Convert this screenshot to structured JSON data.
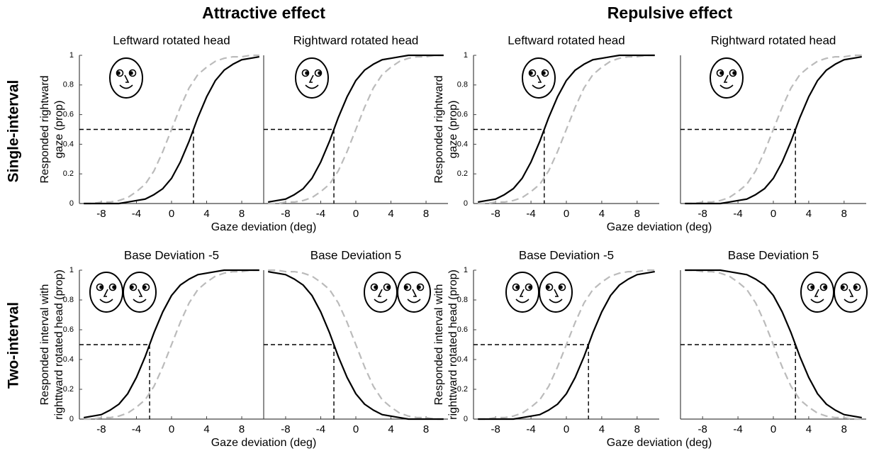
{
  "figure": {
    "columns": [
      "Attractive effect",
      "Repulsive effect"
    ],
    "rows": [
      "Single-interval",
      "Two-interval"
    ]
  },
  "chart_data": [
    {
      "type": "line",
      "title": "Leftward rotated head",
      "ylabel": [
        "Responded rightward",
        "gaze (prop)"
      ],
      "xlabel": "Gaze deviation (deg)",
      "x": [
        -10,
        -9,
        -8,
        -7,
        -6,
        -5,
        -4,
        -3,
        -2,
        -1,
        0,
        1,
        2,
        3,
        4,
        5,
        6,
        7,
        8,
        9,
        10
      ],
      "xlim": [
        -10.5,
        10.5
      ],
      "ylim": [
        0,
        1
      ],
      "xticks": [
        -8,
        -4,
        0,
        4,
        8
      ],
      "yticks": [
        0,
        0.2,
        0.4,
        0.6,
        0.8,
        1
      ],
      "series": [
        {
          "color": "#000000",
          "style": "solid",
          "values": [
            0,
            0,
            0,
            0,
            0,
            0.01,
            0.02,
            0.03,
            0.06,
            0.1,
            0.17,
            0.28,
            0.42,
            0.58,
            0.72,
            0.83,
            0.9,
            0.94,
            0.97,
            0.98,
            0.99
          ]
        },
        {
          "color": "#bbbbbb",
          "style": "dashed",
          "values": [
            0,
            0,
            0.01,
            0.01,
            0.02,
            0.04,
            0.08,
            0.13,
            0.22,
            0.35,
            0.5,
            0.65,
            0.78,
            0.87,
            0.92,
            0.96,
            0.98,
            0.99,
            0.99,
            1,
            1
          ]
        }
      ],
      "reference": {
        "x": 2.5,
        "y": 0.5
      }
    },
    {
      "type": "line",
      "title": "Rightward rotated head",
      "x": [
        -10,
        -9,
        -8,
        -7,
        -6,
        -5,
        -4,
        -3,
        -2,
        -1,
        0,
        1,
        2,
        3,
        4,
        5,
        6,
        7,
        8,
        9,
        10
      ],
      "xlim": [
        -10.5,
        10.5
      ],
      "ylim": [
        0,
        1
      ],
      "xticks": [
        -8,
        -4,
        0,
        4,
        8
      ],
      "series": [
        {
          "color": "#000000",
          "style": "solid",
          "values": [
            0.01,
            0.02,
            0.03,
            0.06,
            0.1,
            0.17,
            0.28,
            0.42,
            0.58,
            0.72,
            0.83,
            0.9,
            0.94,
            0.97,
            0.98,
            0.99,
            1,
            1,
            1,
            1,
            1
          ]
        },
        {
          "color": "#bbbbbb",
          "style": "dashed",
          "values": [
            0,
            0,
            0.01,
            0.01,
            0.02,
            0.04,
            0.08,
            0.13,
            0.22,
            0.35,
            0.5,
            0.65,
            0.78,
            0.87,
            0.92,
            0.96,
            0.98,
            0.99,
            0.99,
            1,
            1
          ]
        }
      ],
      "reference": {
        "x": -2.5,
        "y": 0.5
      }
    },
    {
      "type": "line",
      "title": "Leftward rotated head",
      "ylabel": [
        "Responded rightward",
        "gaze (prop)"
      ],
      "xlabel": "Gaze deviation (deg)",
      "x": [
        -10,
        -9,
        -8,
        -7,
        -6,
        -5,
        -4,
        -3,
        -2,
        -1,
        0,
        1,
        2,
        3,
        4,
        5,
        6,
        7,
        8,
        9,
        10
      ],
      "xlim": [
        -10.5,
        10.5
      ],
      "ylim": [
        0,
        1
      ],
      "xticks": [
        -8,
        -4,
        0,
        4,
        8
      ],
      "yticks": [
        0,
        0.2,
        0.4,
        0.6,
        0.8,
        1
      ],
      "series": [
        {
          "color": "#000000",
          "style": "solid",
          "values": [
            0.01,
            0.02,
            0.03,
            0.06,
            0.1,
            0.17,
            0.28,
            0.42,
            0.58,
            0.72,
            0.83,
            0.9,
            0.94,
            0.97,
            0.98,
            0.99,
            1,
            1,
            1,
            1,
            1
          ]
        },
        {
          "color": "#bbbbbb",
          "style": "dashed",
          "values": [
            0,
            0,
            0.01,
            0.01,
            0.02,
            0.04,
            0.08,
            0.13,
            0.22,
            0.35,
            0.5,
            0.65,
            0.78,
            0.87,
            0.92,
            0.96,
            0.98,
            0.99,
            0.99,
            1,
            1
          ]
        }
      ],
      "reference": {
        "x": -2.5,
        "y": 0.5
      }
    },
    {
      "type": "line",
      "title": "Rightward rotated head",
      "x": [
        -10,
        -9,
        -8,
        -7,
        -6,
        -5,
        -4,
        -3,
        -2,
        -1,
        0,
        1,
        2,
        3,
        4,
        5,
        6,
        7,
        8,
        9,
        10
      ],
      "xlim": [
        -10.5,
        10.5
      ],
      "ylim": [
        0,
        1
      ],
      "xticks": [
        -8,
        -4,
        0,
        4,
        8
      ],
      "series": [
        {
          "color": "#000000",
          "style": "solid",
          "values": [
            0,
            0,
            0,
            0,
            0,
            0.01,
            0.02,
            0.03,
            0.06,
            0.1,
            0.17,
            0.28,
            0.42,
            0.58,
            0.72,
            0.83,
            0.9,
            0.94,
            0.97,
            0.98,
            0.99
          ]
        },
        {
          "color": "#bbbbbb",
          "style": "dashed",
          "values": [
            0,
            0,
            0.01,
            0.01,
            0.02,
            0.04,
            0.08,
            0.13,
            0.22,
            0.35,
            0.5,
            0.65,
            0.78,
            0.87,
            0.92,
            0.96,
            0.98,
            0.99,
            0.99,
            1,
            1
          ]
        }
      ],
      "reference": {
        "x": 2.5,
        "y": 0.5
      }
    },
    {
      "type": "line",
      "title": "Base Deviation -5",
      "ylabel": [
        "Responded interval with",
        "righttward rotated head (prop)"
      ],
      "xlabel": "Gaze deviation (deg)",
      "x": [
        -10,
        -9,
        -8,
        -7,
        -6,
        -5,
        -4,
        -3,
        -2,
        -1,
        0,
        1,
        2,
        3,
        4,
        5,
        6,
        7,
        8,
        9,
        10
      ],
      "xlim": [
        -10.5,
        10.5
      ],
      "ylim": [
        0,
        1
      ],
      "xticks": [
        -8,
        -4,
        0,
        4,
        8
      ],
      "yticks": [
        0,
        0.2,
        0.4,
        0.6,
        0.8,
        1
      ],
      "series": [
        {
          "color": "#000000",
          "style": "solid",
          "values": [
            0.01,
            0.02,
            0.03,
            0.06,
            0.1,
            0.17,
            0.28,
            0.42,
            0.58,
            0.72,
            0.83,
            0.9,
            0.94,
            0.97,
            0.98,
            0.99,
            1,
            1,
            1,
            1,
            1
          ]
        },
        {
          "color": "#bbbbbb",
          "style": "dashed",
          "values": [
            0,
            0,
            0.01,
            0.01,
            0.02,
            0.04,
            0.08,
            0.13,
            0.22,
            0.35,
            0.5,
            0.65,
            0.78,
            0.87,
            0.92,
            0.96,
            0.98,
            0.99,
            0.99,
            1,
            1
          ]
        }
      ],
      "reference": {
        "x": -2.5,
        "y": 0.5
      }
    },
    {
      "type": "line",
      "title": "Base Deviation 5",
      "x": [
        -10,
        -9,
        -8,
        -7,
        -6,
        -5,
        -4,
        -3,
        -2,
        -1,
        0,
        1,
        2,
        3,
        4,
        5,
        6,
        7,
        8,
        9,
        10
      ],
      "xlim": [
        -10.5,
        10.5
      ],
      "ylim": [
        0,
        1
      ],
      "xticks": [
        -8,
        -4,
        0,
        4,
        8
      ],
      "series": [
        {
          "color": "#000000",
          "style": "solid",
          "values": [
            0.99,
            0.98,
            0.97,
            0.94,
            0.9,
            0.83,
            0.72,
            0.58,
            0.42,
            0.28,
            0.17,
            0.1,
            0.06,
            0.03,
            0.02,
            0.01,
            0,
            0,
            0,
            0,
            0
          ]
        },
        {
          "color": "#bbbbbb",
          "style": "dashed",
          "values": [
            1,
            1,
            0.99,
            0.99,
            0.98,
            0.96,
            0.92,
            0.87,
            0.78,
            0.65,
            0.5,
            0.35,
            0.22,
            0.13,
            0.08,
            0.04,
            0.02,
            0.01,
            0.01,
            0,
            0
          ]
        }
      ],
      "reference": {
        "x": -2.5,
        "y": 0.5
      }
    },
    {
      "type": "line",
      "title": "Base Deviation -5",
      "ylabel": [
        "Responded interval with",
        "righttward rotated head (prop)"
      ],
      "xlabel": "Gaze deviation (deg)",
      "x": [
        -10,
        -9,
        -8,
        -7,
        -6,
        -5,
        -4,
        -3,
        -2,
        -1,
        0,
        1,
        2,
        3,
        4,
        5,
        6,
        7,
        8,
        9,
        10
      ],
      "xlim": [
        -10.5,
        10.5
      ],
      "ylim": [
        0,
        1
      ],
      "xticks": [
        -8,
        -4,
        0,
        4,
        8
      ],
      "yticks": [
        0,
        0.2,
        0.4,
        0.6,
        0.8,
        1
      ],
      "series": [
        {
          "color": "#000000",
          "style": "solid",
          "values": [
            0,
            0,
            0,
            0,
            0,
            0.01,
            0.02,
            0.03,
            0.06,
            0.1,
            0.17,
            0.28,
            0.42,
            0.58,
            0.72,
            0.83,
            0.9,
            0.94,
            0.97,
            0.98,
            0.99
          ]
        },
        {
          "color": "#bbbbbb",
          "style": "dashed",
          "values": [
            0,
            0,
            0.01,
            0.01,
            0.02,
            0.04,
            0.08,
            0.13,
            0.22,
            0.35,
            0.5,
            0.65,
            0.78,
            0.87,
            0.92,
            0.96,
            0.98,
            0.99,
            0.99,
            1,
            1
          ]
        }
      ],
      "reference": {
        "x": 2.5,
        "y": 0.5
      }
    },
    {
      "type": "line",
      "title": "Base Deviation 5",
      "x": [
        -10,
        -9,
        -8,
        -7,
        -6,
        -5,
        -4,
        -3,
        -2,
        -1,
        0,
        1,
        2,
        3,
        4,
        5,
        6,
        7,
        8,
        9,
        10
      ],
      "xlim": [
        -10.5,
        10.5
      ],
      "ylim": [
        0,
        1
      ],
      "xticks": [
        -8,
        -4,
        0,
        4,
        8
      ],
      "series": [
        {
          "color": "#000000",
          "style": "solid",
          "values": [
            1,
            1,
            1,
            1,
            1,
            0.99,
            0.98,
            0.97,
            0.94,
            0.9,
            0.83,
            0.72,
            0.58,
            0.42,
            0.28,
            0.17,
            0.1,
            0.06,
            0.03,
            0.02,
            0.01
          ]
        },
        {
          "color": "#bbbbbb",
          "style": "dashed",
          "values": [
            1,
            1,
            0.99,
            0.99,
            0.98,
            0.96,
            0.92,
            0.87,
            0.78,
            0.65,
            0.5,
            0.35,
            0.22,
            0.13,
            0.08,
            0.04,
            0.02,
            0.01,
            0.01,
            0,
            0
          ]
        }
      ],
      "reference": {
        "x": 2.5,
        "y": 0.5
      }
    }
  ]
}
